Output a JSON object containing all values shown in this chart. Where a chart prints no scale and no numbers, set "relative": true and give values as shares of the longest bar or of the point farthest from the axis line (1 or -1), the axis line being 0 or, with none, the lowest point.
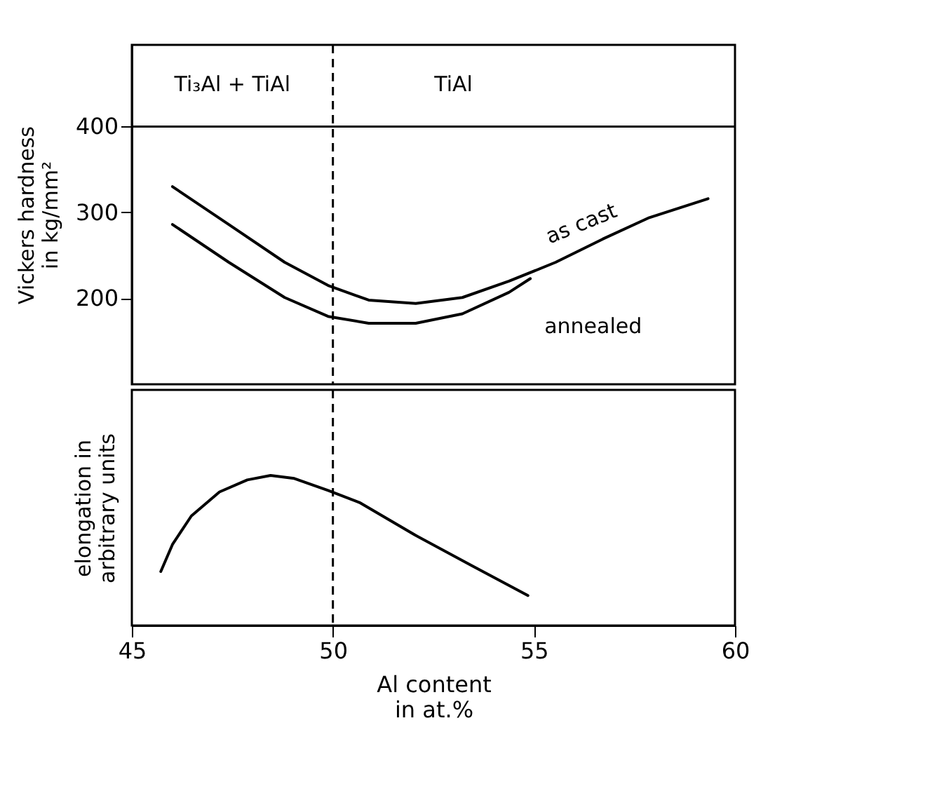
{
  "chart_data": [
    {
      "type": "line",
      "ylabel": "Vickers hardness in kg/mm²",
      "xlim": [
        45,
        60
      ],
      "xticks": [
        45,
        50,
        55,
        60
      ],
      "ylim": [
        100,
        495
      ],
      "yticks": [
        200,
        300,
        400
      ],
      "tick_labels": "y",
      "grid": false,
      "series": [
        {
          "name": "as cast",
          "color": "#000000",
          "x": [
            46.01,
            47.41,
            48.8,
            49.88,
            50.89,
            52.06,
            53.22,
            54.38,
            55.54,
            56.71,
            57.87,
            59.33
          ],
          "values": [
            330,
            286,
            242,
            215,
            198,
            194,
            201,
            220,
            242,
            269,
            294,
            316
          ]
        },
        {
          "name": "annealed",
          "color": "#000000",
          "x": [
            46.01,
            47.41,
            48.8,
            49.88,
            50.89,
            52.06,
            53.22,
            54.38,
            54.91
          ],
          "values": [
            286,
            242,
            201,
            179,
            171,
            171,
            182,
            207,
            223
          ]
        }
      ],
      "ref_lines": [
        {
          "axis": "y",
          "value": 400,
          "color": "#000000",
          "line_style": "solid"
        },
        {
          "axis": "x",
          "value": 50,
          "color": "#000000",
          "line_style": "dashed"
        }
      ],
      "annotations": [
        "Ti₃Al + TiAl",
        "TiAl"
      ]
    },
    {
      "type": "line",
      "relative": true,
      "xlabel": "Al content in at.%",
      "ylabel": "elongation in arbitrary units",
      "xlim": [
        45,
        60
      ],
      "xticks": [
        45,
        50,
        55,
        60
      ],
      "tick_labels": "x",
      "grid": false,
      "series": [
        {
          "color": "#000000",
          "x": [
            45.72,
            46.01,
            46.48,
            47.18,
            47.87,
            48.45,
            49.04,
            49.88,
            50.66,
            52.06,
            53.45,
            54.85
          ],
          "values": [
            0.36,
            0.54,
            0.73,
            0.89,
            0.97,
            1,
            0.98,
            0.9,
            0.82,
            0.6,
            0.4,
            0.2
          ]
        }
      ],
      "ref_lines": [
        {
          "axis": "x",
          "value": 50,
          "color": "#000000",
          "line_style": "dashed"
        }
      ]
    }
  ]
}
